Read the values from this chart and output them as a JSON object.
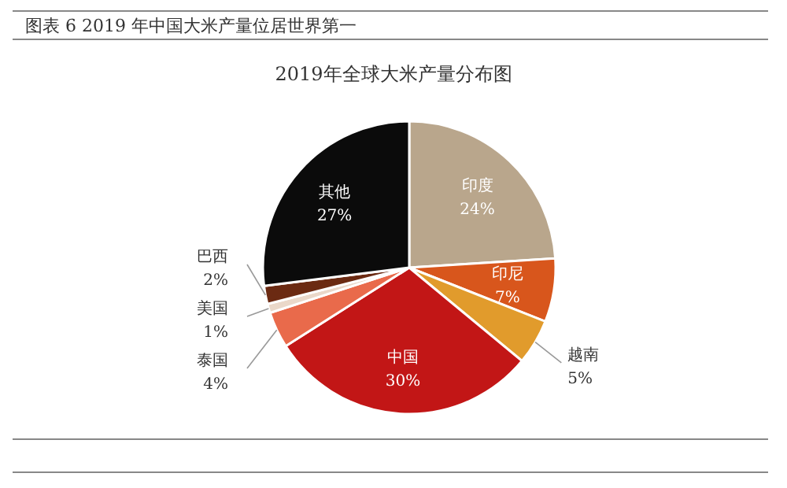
{
  "chart_data": {
    "type": "pie",
    "title": "图表 6 2019 年中国大米产量位居世界第一",
    "subtitle": "2019年全球大米产量分布图",
    "categories": [
      "印度",
      "印尼",
      "越南",
      "中国",
      "泰国",
      "美国",
      "巴西",
      "其他"
    ],
    "values": [
      24,
      7,
      5,
      30,
      4,
      1,
      2,
      27
    ],
    "colors": [
      "#b9a68c",
      "#d8561c",
      "#e19b2c",
      "#c21616",
      "#e96a4b",
      "#ead8c9",
      "#6b2a12",
      "#0b0b0b"
    ],
    "value_labels": [
      "24%",
      "7%",
      "5%",
      "30%",
      "4%",
      "1%",
      "2%",
      "27%"
    ]
  }
}
